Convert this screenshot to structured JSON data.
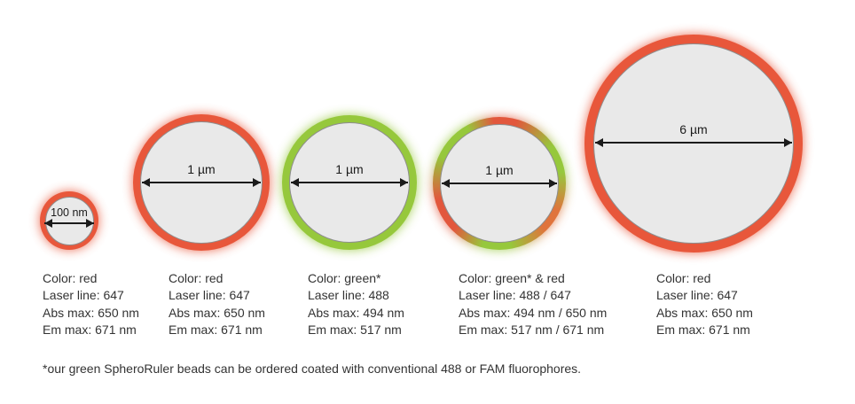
{
  "colors": {
    "red_ring": "#E8573B",
    "green_ring": "#96C83C",
    "mix_orange": "#E0743C",
    "bead_fill": "#E9E9E9",
    "bead_fill_border": "#8E8E8E",
    "text": "#333333",
    "arrow": "#1B1B1B",
    "background": "#FFFFFF"
  },
  "beads": [
    {
      "size_label": "100 nm",
      "ring": "red",
      "specs": [
        "Color: red",
        "Laser line: 647",
        "Abs max: 650 nm",
        "Em max: 671 nm"
      ]
    },
    {
      "size_label": "1 µm",
      "ring": "red",
      "specs": [
        "Color: red",
        "Laser line: 647",
        "Abs max: 650 nm",
        "Em max: 671 nm"
      ]
    },
    {
      "size_label": "1 µm",
      "ring": "green",
      "specs": [
        "Color: green*",
        "Laser line: 488",
        "Abs max: 494 nm",
        "Em max: 517 nm"
      ]
    },
    {
      "size_label": "1 µm",
      "ring": "green-red",
      "specs": [
        "Color: green* & red",
        "Laser line: 488 / 647",
        "Abs max: 494 nm / 650 nm",
        "Em max: 517 nm / 671 nm"
      ]
    },
    {
      "size_label": "6 µm",
      "ring": "red",
      "specs": [
        "Color: red",
        "Laser line: 647",
        "Abs max: 650 nm",
        "Em max: 671 nm"
      ]
    }
  ],
  "footnote": "*our green SpheroRuler beads can be ordered coated with conventional 488 or FAM fluorophores."
}
